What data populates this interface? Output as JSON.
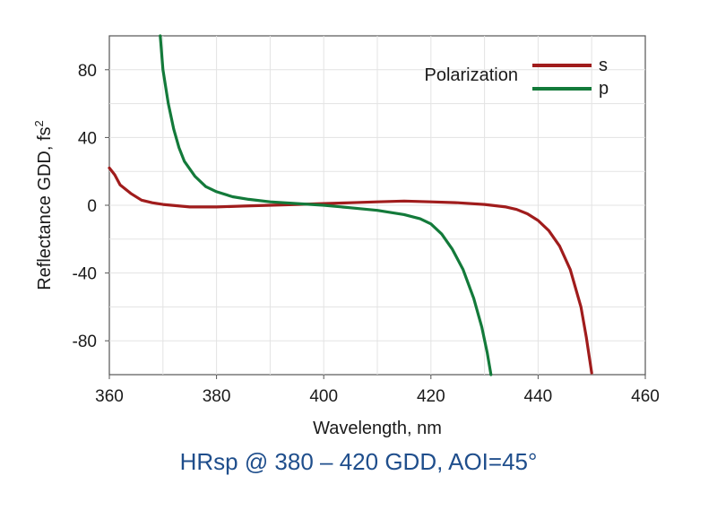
{
  "caption": "HRsp @ 380 – 420 GDD, AOI=45°",
  "chart_data": {
    "type": "line",
    "xlabel": "Wavelength, nm",
    "ylabel": "Reflectance GDD, fs",
    "ylabel_superscript": "2",
    "xlim": [
      360,
      460
    ],
    "ylim": [
      -100,
      100
    ],
    "xticks": [
      360,
      380,
      400,
      420,
      440,
      460
    ],
    "yticks": [
      80,
      40,
      0,
      -40,
      -80
    ],
    "grid": true,
    "legend": {
      "title": "Polarization",
      "placement": "top-right"
    },
    "series": [
      {
        "name": "s",
        "color": "#a01c1c",
        "points": [
          [
            360,
            22
          ],
          [
            361,
            18
          ],
          [
            362,
            12
          ],
          [
            364,
            7
          ],
          [
            366,
            3
          ],
          [
            368,
            1.5
          ],
          [
            370,
            0.5
          ],
          [
            375,
            -1
          ],
          [
            380,
            -1
          ],
          [
            385,
            -0.5
          ],
          [
            390,
            0
          ],
          [
            395,
            0.5
          ],
          [
            400,
            1
          ],
          [
            405,
            1.5
          ],
          [
            410,
            2
          ],
          [
            415,
            2.5
          ],
          [
            420,
            2
          ],
          [
            425,
            1.5
          ],
          [
            430,
            0.5
          ],
          [
            434,
            -1
          ],
          [
            436,
            -2.5
          ],
          [
            438,
            -5
          ],
          [
            440,
            -9
          ],
          [
            442,
            -15
          ],
          [
            444,
            -24
          ],
          [
            446,
            -38
          ],
          [
            448,
            -60
          ],
          [
            449,
            -78
          ],
          [
            450,
            -99
          ]
        ]
      },
      {
        "name": "p",
        "color": "#137a3a",
        "points": [
          [
            369.5,
            100
          ],
          [
            370,
            80
          ],
          [
            371,
            60
          ],
          [
            372,
            45
          ],
          [
            373,
            34
          ],
          [
            374,
            26
          ],
          [
            376,
            17
          ],
          [
            378,
            11
          ],
          [
            380,
            8
          ],
          [
            383,
            5
          ],
          [
            386,
            3.5
          ],
          [
            390,
            2
          ],
          [
            395,
            1
          ],
          [
            400,
            0
          ],
          [
            405,
            -1.5
          ],
          [
            410,
            -3
          ],
          [
            415,
            -5.5
          ],
          [
            418,
            -8
          ],
          [
            420,
            -11
          ],
          [
            422,
            -17
          ],
          [
            424,
            -26
          ],
          [
            426,
            -38
          ],
          [
            428,
            -55
          ],
          [
            429.5,
            -72
          ],
          [
            430.5,
            -87
          ],
          [
            431.2,
            -100
          ]
        ]
      }
    ]
  }
}
